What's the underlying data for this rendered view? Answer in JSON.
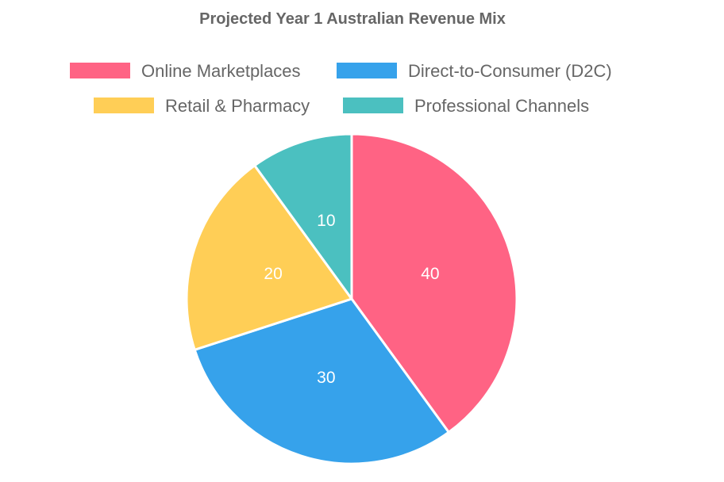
{
  "chart_data": {
    "type": "pie",
    "title": "Projected Year 1 Australian Revenue Mix",
    "categories": [
      "Online Marketplaces",
      "Direct-to-Consumer (D2C)",
      "Retail & Pharmacy",
      "Professional Channels"
    ],
    "values": [
      40,
      30,
      20,
      10
    ],
    "colors": [
      "#ff6384",
      "#36a2eb",
      "#ffce56",
      "#4bc0c0"
    ],
    "legend_position": "top",
    "show_value_labels": true
  }
}
